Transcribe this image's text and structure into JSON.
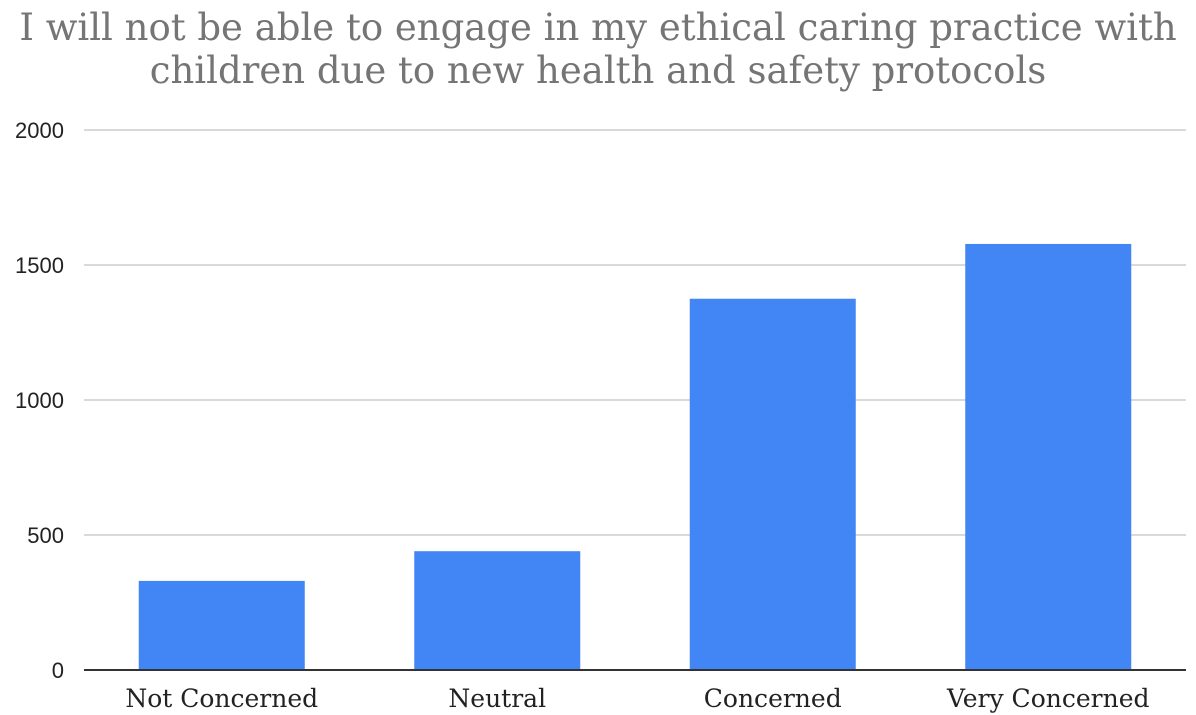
{
  "chart_data": {
    "type": "bar",
    "title_lines": [
      "I will not be able to engage in my ethical caring practice with",
      "children due to new health and safety protocols"
    ],
    "categories": [
      "Not Concerned",
      "Neutral",
      "Concerned",
      "Very Concerned"
    ],
    "values": [
      330,
      440,
      1375,
      1578
    ],
    "ylim": [
      0,
      2000
    ],
    "yticks": [
      0,
      500,
      1000,
      1500,
      2000
    ],
    "ytick_labels": [
      "0",
      "500",
      "1000",
      "1500",
      "2000"
    ],
    "xlabel": "",
    "ylabel": "",
    "grid": true,
    "legend": "none",
    "bar_color": "#4285f4",
    "title_color": "#757575",
    "grid_color": "#d9d9d9",
    "axis_color": "#333333"
  }
}
